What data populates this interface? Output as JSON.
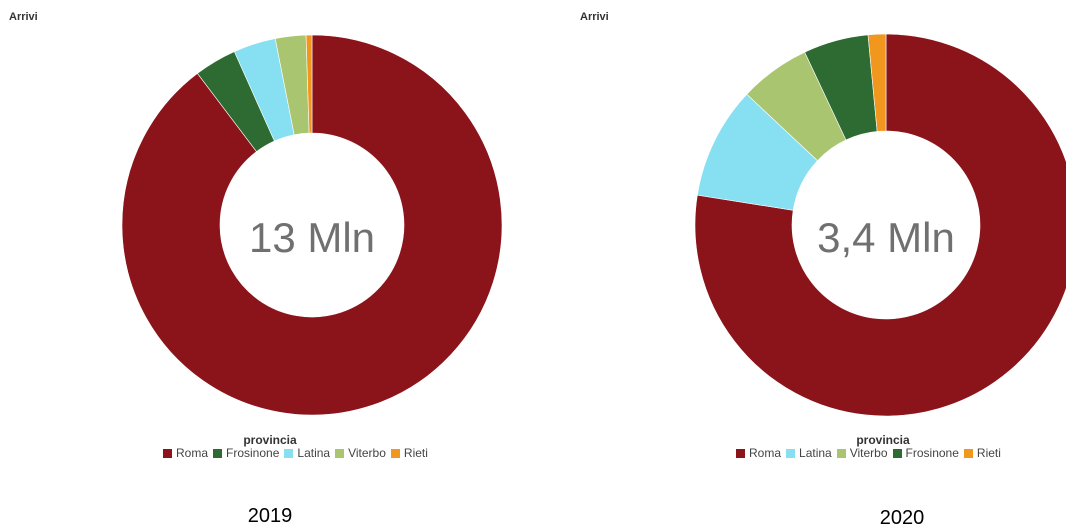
{
  "colors": {
    "Roma": "#8B141B",
    "Frosinone": "#2E6B33",
    "Latina": "#87DFF2",
    "Viterbo": "#A9C56F",
    "Rieti": "#F2971E"
  },
  "chart_data": [
    {
      "type": "pie",
      "title": "Arrivi",
      "center_label": "13 Mln",
      "legend_title": "provincia",
      "legend_placement": "bottom",
      "year": "2019",
      "categories": [
        "Roma",
        "Frosinone",
        "Latina",
        "Viterbo",
        "Rieti"
      ],
      "values": [
        89.7,
        3.6,
        3.6,
        2.6,
        0.5
      ]
    },
    {
      "type": "pie",
      "title": "Arrivi",
      "center_label": "3,4 Mln",
      "legend_title": "provincia",
      "legend_placement": "bottom",
      "year": "2020",
      "categories": [
        "Roma",
        "Latina",
        "Viterbo",
        "Frosinone",
        "Rieti"
      ],
      "values": [
        77.5,
        9.5,
        6.0,
        5.5,
        1.5
      ]
    }
  ]
}
